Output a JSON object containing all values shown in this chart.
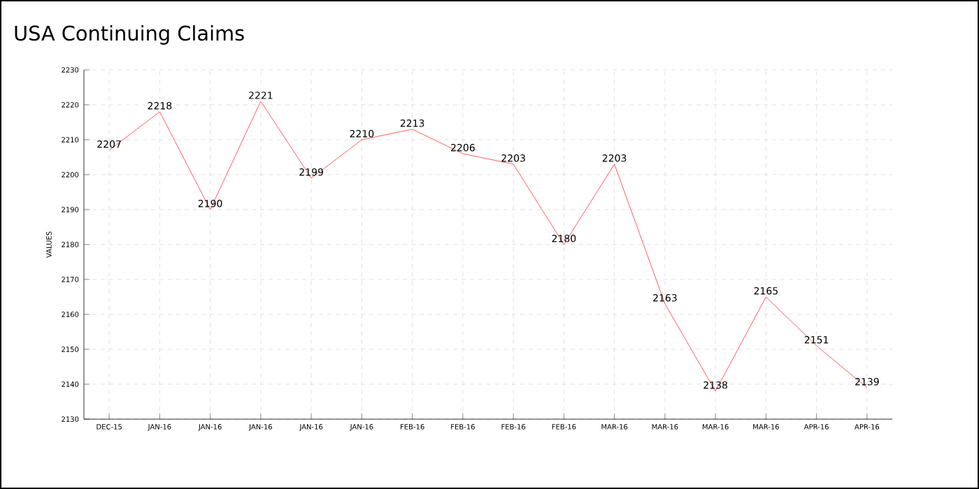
{
  "chart_data": {
    "type": "line",
    "title": "USA Continuing Claims",
    "ylabel": "VALUES",
    "categories": [
      "DEC-15",
      "JAN-16",
      "JAN-16",
      "JAN-16",
      "JAN-16",
      "JAN-16",
      "FEB-16",
      "FEB-16",
      "FEB-16",
      "FEB-16",
      "MAR-16",
      "MAR-16",
      "MAR-16",
      "MAR-16",
      "APR-16",
      "APR-16"
    ],
    "series": [
      {
        "color": "#ff3333",
        "values": [
          2207,
          2218,
          2190,
          2221,
          2199,
          2210,
          2213,
          2206,
          2203,
          2180,
          2203,
          2163,
          2138,
          2165,
          2151,
          2139
        ]
      }
    ],
    "ylim": [
      2130,
      2230
    ],
    "yticks": [
      2130,
      2140,
      2150,
      2160,
      2170,
      2180,
      2190,
      2200,
      2210,
      2220,
      2230
    ],
    "grid": true,
    "data_labels": true,
    "marker": "none",
    "line_style": "solid"
  }
}
